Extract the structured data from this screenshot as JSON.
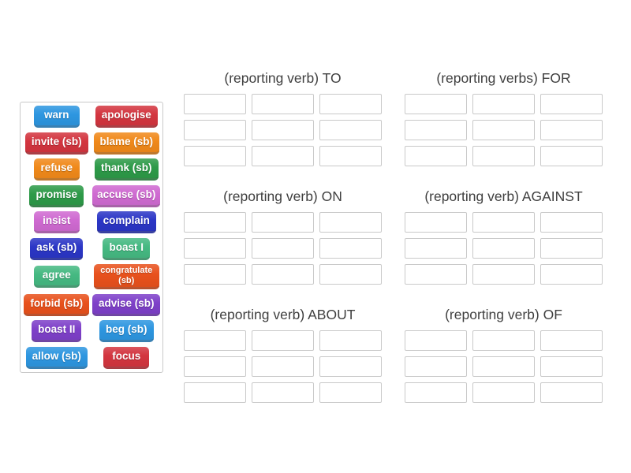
{
  "activity": {
    "kind": "group-sort"
  },
  "word_bank": {
    "tiles": [
      {
        "label": "warn",
        "color": "#2d96e0"
      },
      {
        "label": "apologise",
        "color": "#d3353f"
      },
      {
        "label": "invite (sb)",
        "color": "#d3353f"
      },
      {
        "label": "blame (sb)",
        "color": "#f0891a"
      },
      {
        "label": "refuse",
        "color": "#f0891a"
      },
      {
        "label": "thank (sb)",
        "color": "#2d9a48"
      },
      {
        "label": "promise",
        "color": "#2d9a48"
      },
      {
        "label": "accuse (sb)",
        "color": "#cf6ad1"
      },
      {
        "label": "insist",
        "color": "#cf6ad1"
      },
      {
        "label": "complain",
        "color": "#2b36c6"
      },
      {
        "label": "ask (sb)",
        "color": "#2b36c6"
      },
      {
        "label": "boast I",
        "color": "#45b982"
      },
      {
        "label": "agree",
        "color": "#45b982"
      },
      {
        "label": "congratulate (sb)",
        "color": "#e8511c",
        "small": true
      },
      {
        "label": "forbid (sb)",
        "color": "#e8511c"
      },
      {
        "label": "advise (sb)",
        "color": "#7e40c9"
      },
      {
        "label": "boast II",
        "color": "#7e40c9"
      },
      {
        "label": "beg (sb)",
        "color": "#2d96e0"
      },
      {
        "label": "allow (sb)",
        "color": "#2d96e0"
      },
      {
        "label": "focus",
        "color": "#d3353f"
      }
    ]
  },
  "groups": [
    {
      "title": "(reporting verb) TO",
      "slot_count": 9
    },
    {
      "title": "(reporting verbs) FOR",
      "slot_count": 9
    },
    {
      "title": "(reporting verb) ON",
      "slot_count": 9
    },
    {
      "title": "(reporting verb) AGAINST",
      "slot_count": 9
    },
    {
      "title": "(reporting verb) ABOUT",
      "slot_count": 9
    },
    {
      "title": "(reporting verb) OF",
      "slot_count": 9
    }
  ],
  "styles": {
    "slot_border": "#c9c9c9",
    "bank_border": "#c9c9c9",
    "header_text": "#3f3f3f",
    "page_background": "#ffffff"
  }
}
